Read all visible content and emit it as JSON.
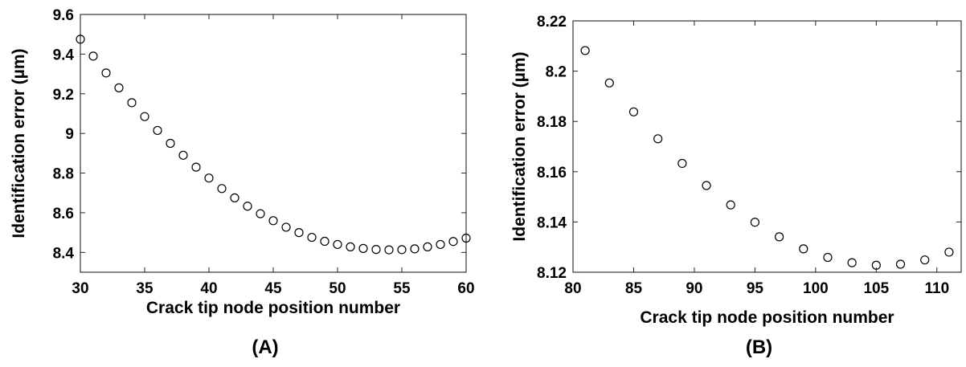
{
  "chart_data": [
    {
      "type": "scatter",
      "panel_label": "(A)",
      "title": "",
      "xlabel": "Crack tip node position number",
      "ylabel": "Identification error (µm)",
      "xlim": [
        30,
        60
      ],
      "ylim": [
        8.3,
        9.6
      ],
      "xticks": [
        30,
        35,
        40,
        45,
        50,
        55,
        60
      ],
      "yticks": [
        8.4,
        8.6,
        8.8,
        9,
        9.2,
        9.4,
        9.6
      ],
      "xtick_labels": [
        "30",
        "35",
        "40",
        "45",
        "50",
        "55",
        "60"
      ],
      "ytick_labels": [
        "8.4",
        "8.6",
        "8.8",
        "9",
        "9.2",
        "9.4",
        "9.6"
      ],
      "marker": "open-circle",
      "grid": false,
      "x": [
        30,
        31,
        32,
        33,
        34,
        35,
        36,
        37,
        38,
        39,
        40,
        41,
        42,
        43,
        44,
        45,
        46,
        47,
        48,
        49,
        50,
        51,
        52,
        53,
        54,
        55,
        56,
        57,
        58,
        59,
        60
      ],
      "y": [
        9.475,
        9.39,
        9.305,
        9.23,
        9.155,
        9.085,
        9.015,
        8.95,
        8.89,
        8.83,
        8.775,
        8.722,
        8.675,
        8.633,
        8.595,
        8.56,
        8.527,
        8.5,
        8.476,
        8.456,
        8.44,
        8.428,
        8.42,
        8.415,
        8.413,
        8.414,
        8.418,
        8.428,
        8.44,
        8.455,
        8.472
      ]
    },
    {
      "type": "scatter",
      "panel_label": "(B)",
      "title": "",
      "xlabel": "Crack tip node position number",
      "ylabel": "Identification error (µm)",
      "xlim": [
        80,
        112
      ],
      "ylim": [
        8.12,
        8.22
      ],
      "xticks": [
        80,
        85,
        90,
        95,
        100,
        105,
        110
      ],
      "yticks": [
        8.12,
        8.14,
        8.16,
        8.18,
        8.2,
        8.22
      ],
      "xtick_labels": [
        "80",
        "85",
        "90",
        "95",
        "100",
        "105",
        "110"
      ],
      "ytick_labels": [
        "8.12",
        "8.14",
        "8.16",
        "8.18",
        "8.2",
        "8.22"
      ],
      "marker": "open-circle",
      "grid": false,
      "x": [
        81,
        83,
        85,
        87,
        89,
        91,
        93,
        95,
        97,
        99,
        101,
        103,
        105,
        107,
        109,
        111
      ],
      "y": [
        8.2082,
        8.1953,
        8.1838,
        8.1731,
        8.1633,
        8.1545,
        8.1468,
        8.1399,
        8.1341,
        8.1293,
        8.1259,
        8.1238,
        8.1228,
        8.1232,
        8.1249,
        8.128
      ]
    }
  ]
}
